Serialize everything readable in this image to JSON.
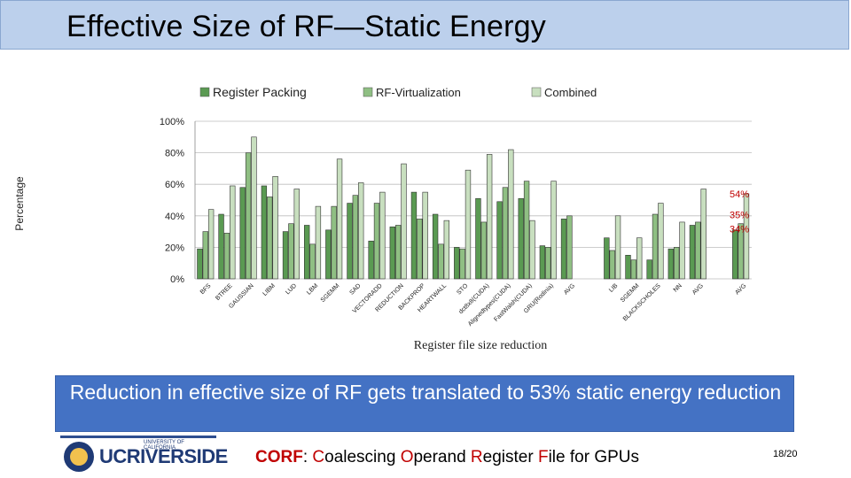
{
  "slide": {
    "title": "Effective Size of RF—Static Energy",
    "callout": "Reduction in effective size of RF gets translated to 53% static energy reduction",
    "footer": {
      "corf_bold": "CORF",
      "corf_colon": ": ",
      "word1_initial": "C",
      "word1_rest": "oalescing ",
      "word2_initial": "O",
      "word2_rest": "perand ",
      "word3_initial": "R",
      "word3_rest": "egister ",
      "word4_initial": "F",
      "word4_rest": "ile for GPUs",
      "page": "18/20",
      "logo_text": "UCRIVERSIDE",
      "logo_small": "UNIVERSITY OF CALIFORNIA"
    },
    "colors": {
      "title_bg": "#bcd0ec",
      "callout_bg": "#4472c4",
      "accent_red": "#c00000"
    }
  },
  "chart_data": {
    "type": "bar",
    "ylabel": "Percentage",
    "xlabel": "Register file size reduction",
    "ylim": [
      0,
      100
    ],
    "yticks": [
      "0%",
      "20%",
      "40%",
      "60%",
      "80%",
      "100%"
    ],
    "legend_position": "top",
    "categories": [
      "BFS",
      "BTREE",
      "GAUSSIAN",
      "LIBM",
      "LUD",
      "LBM",
      "SGEMM",
      "SAD",
      "VECTORADD",
      "REDUCTION",
      "BACKPROP",
      "HEARTWALL",
      "STO",
      "dct8x8(CUDA)",
      "Alignedtypes(CUDA)",
      "FastWalsh(CUDA)",
      "GRU(Rodinia)",
      "AVG",
      "",
      "LIB",
      "SGEMM",
      "BLACKSCHOLES",
      "NN",
      "AVG",
      "",
      "AVG"
    ],
    "series": [
      {
        "name": "Register Packing",
        "color": "#5a9a52",
        "values": [
          19,
          41,
          58,
          59,
          30,
          34,
          31,
          48,
          24,
          33,
          55,
          41,
          20,
          51,
          49,
          51,
          21,
          38,
          null,
          26,
          15,
          12,
          19,
          34,
          null,
          31
        ]
      },
      {
        "name": "RF-Virtualization",
        "color": "#8fbf83",
        "values": [
          30,
          29,
          80,
          52,
          35,
          22,
          46,
          53,
          48,
          34,
          38,
          22,
          19,
          36,
          58,
          62,
          20,
          40,
          null,
          18,
          12,
          41,
          20,
          36,
          null,
          35
        ]
      },
      {
        "name": "Combined",
        "color": "#c8dfbf",
        "values": [
          44,
          59,
          90,
          65,
          57,
          46,
          76,
          61,
          55,
          73,
          55,
          37,
          69,
          79,
          82,
          37,
          62,
          null,
          null,
          40,
          26,
          48,
          36,
          57,
          null,
          54
        ]
      }
    ],
    "annotations": [
      "54%",
      "35%",
      "34%"
    ]
  }
}
